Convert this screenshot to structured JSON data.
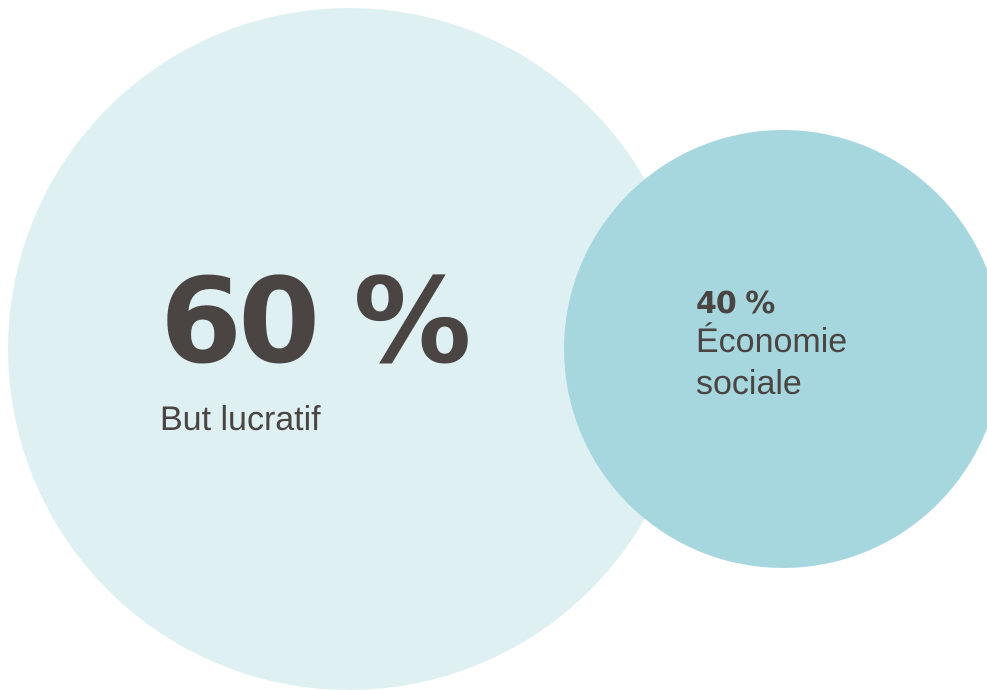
{
  "chart_data": {
    "type": "bubble",
    "series": [
      {
        "value": 60,
        "value_label": "60 %",
        "label": "But lucratif",
        "color": "#dff0f2"
      },
      {
        "value": 40,
        "value_label": "40 %",
        "label": "Économie sociale",
        "color": "#a7d7de"
      }
    ],
    "text_color": "#4a4542"
  }
}
